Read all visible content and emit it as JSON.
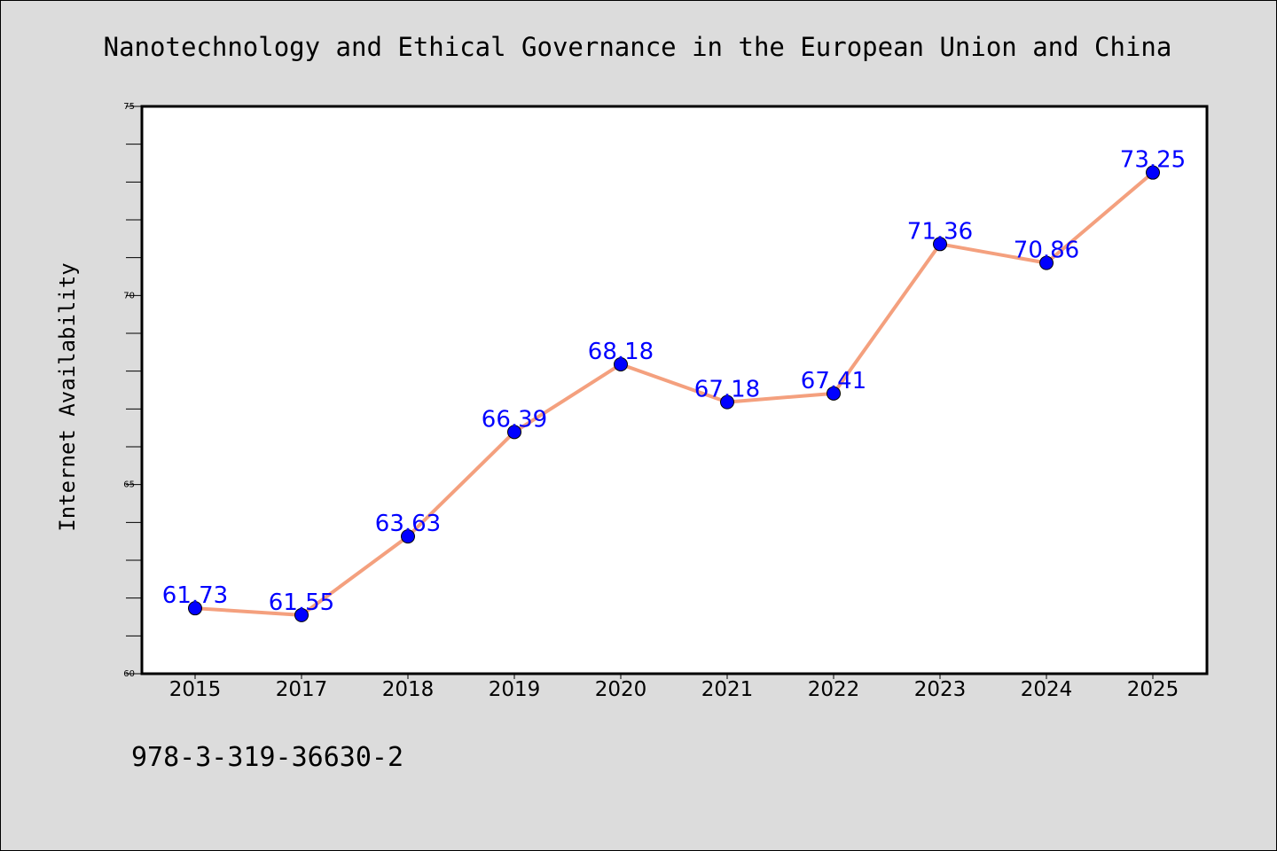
{
  "chart_data": {
    "type": "line",
    "title": "Nanotechnology and Ethical Governance in the European Union and China",
    "xlabel": "",
    "ylabel": "Internet Availability",
    "categories": [
      "2015",
      "2017",
      "2018",
      "2019",
      "2020",
      "2021",
      "2022",
      "2023",
      "2024",
      "2025"
    ],
    "series": [
      {
        "values": [
          61.73,
          61.55,
          63.63,
          66.39,
          68.18,
          67.18,
          67.41,
          71.36,
          70.86,
          73.25
        ],
        "labels": [
          "61.73",
          "61.55",
          "63.63",
          "66.39",
          "68.18",
          "67.18",
          "67.41",
          "71.36",
          "70.86",
          "73.25"
        ]
      }
    ],
    "ylim": [
      60,
      75
    ],
    "yticks": [
      60,
      65,
      70,
      75
    ],
    "ytick_labels": [
      "60",
      "65",
      "70",
      "75"
    ],
    "yminor_step": 1,
    "grid": false,
    "legend": "none",
    "colors": {
      "line": "#f4a07e",
      "marker": "#0000ff",
      "label": "#0000ff",
      "plot_background": "#ffffff",
      "figure_background": "#dcdcdc"
    }
  },
  "footnote": "978-3-319-36630-2"
}
